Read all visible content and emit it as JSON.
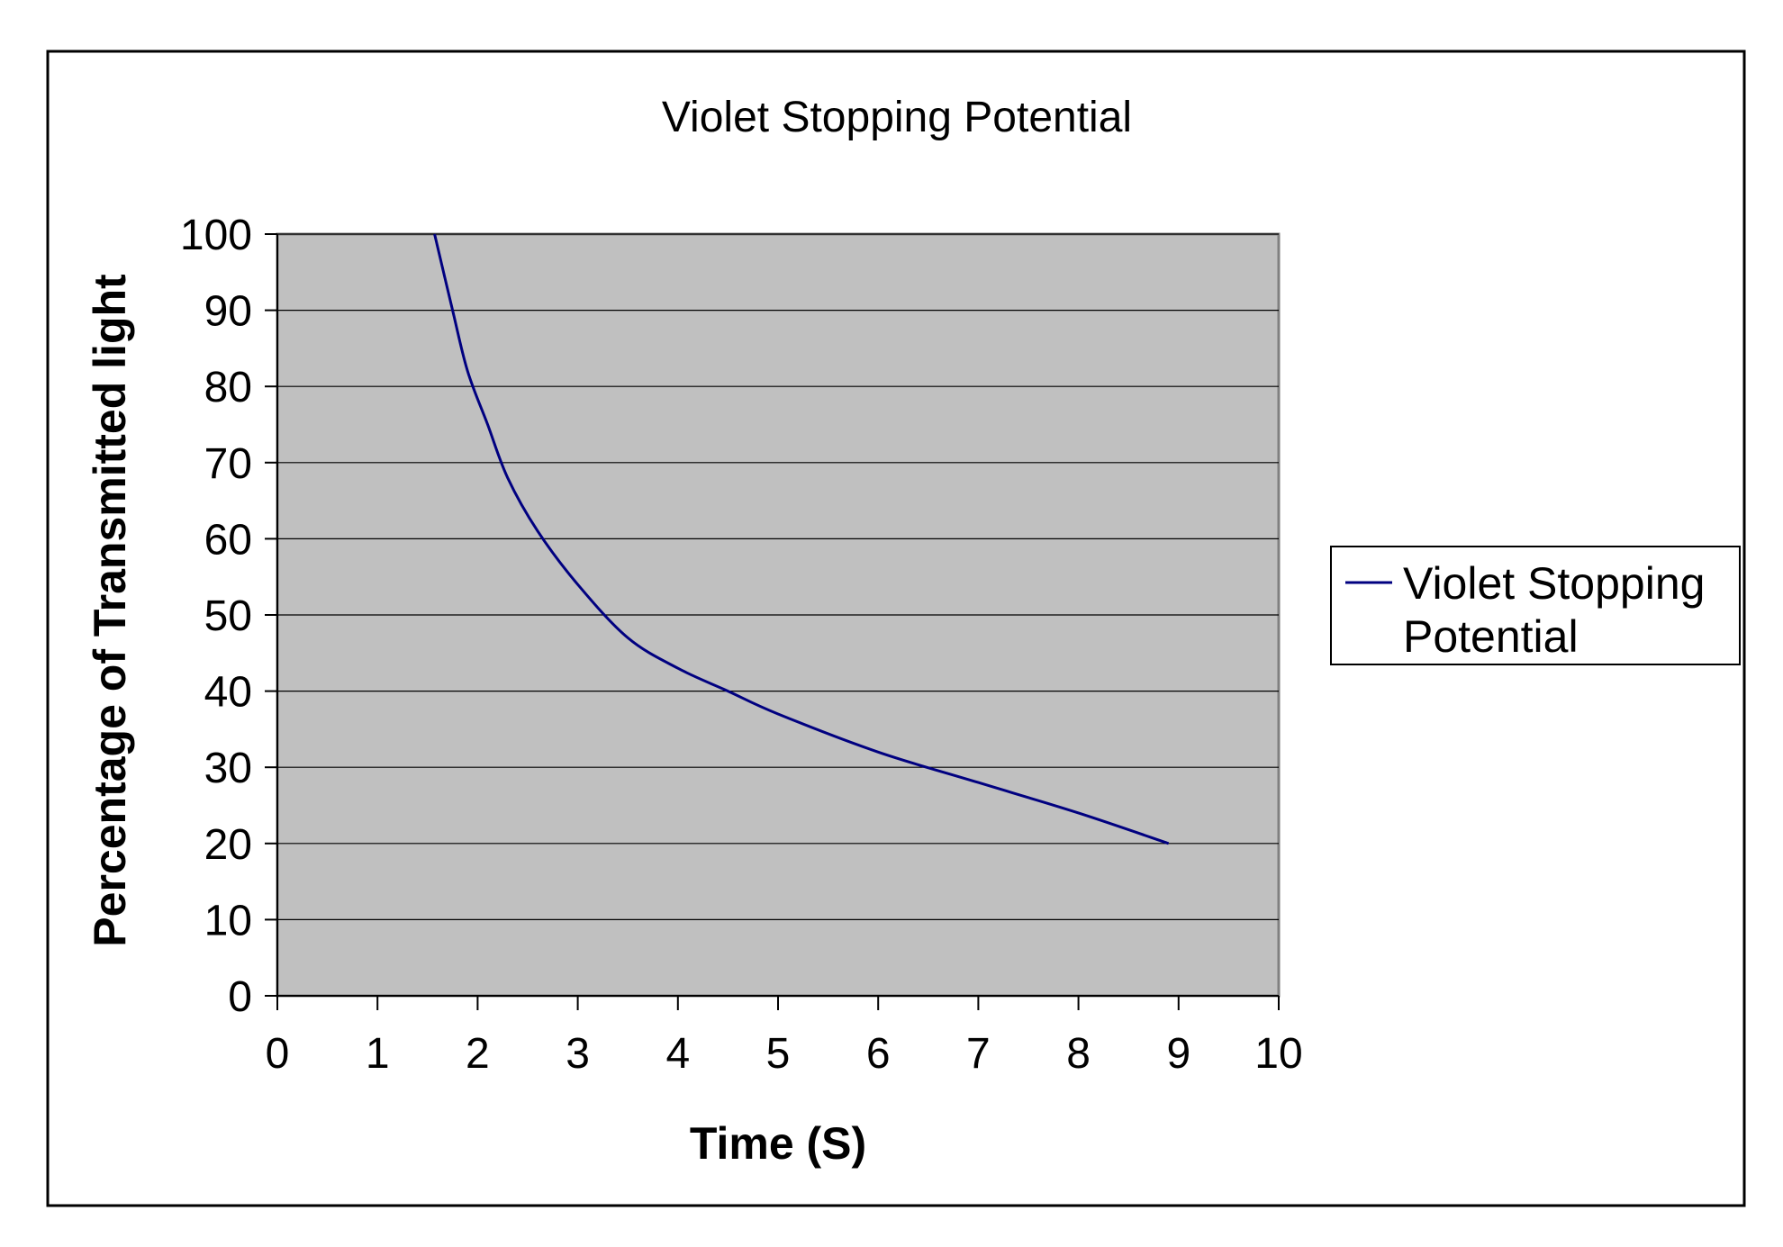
{
  "chart_data": {
    "type": "line",
    "title": "Violet Stopping Potential",
    "xlabel": "Time (S)",
    "ylabel": "Percentage of Transmitted light",
    "xlim": [
      0,
      10
    ],
    "ylim": [
      0,
      100
    ],
    "xticks": [
      0,
      1,
      2,
      3,
      4,
      5,
      6,
      7,
      8,
      9,
      10
    ],
    "yticks": [
      0,
      10,
      20,
      30,
      40,
      50,
      60,
      70,
      80,
      90,
      100
    ],
    "grid": "horizontal",
    "legend_position": "right",
    "series": [
      {
        "name": "Violet Stopping Potential",
        "color": "#000080",
        "x": [
          1.57,
          1.75,
          1.9,
          2.1,
          2.3,
          2.6,
          3.0,
          3.5,
          4.0,
          4.5,
          5.0,
          6.0,
          7.0,
          8.0,
          8.9
        ],
        "y": [
          100,
          90,
          82,
          75,
          68,
          61,
          54,
          47,
          43,
          40,
          37,
          32,
          28,
          24,
          20
        ]
      }
    ],
    "plot_background": "#c0c0c0",
    "gridline_color": "#000000"
  }
}
